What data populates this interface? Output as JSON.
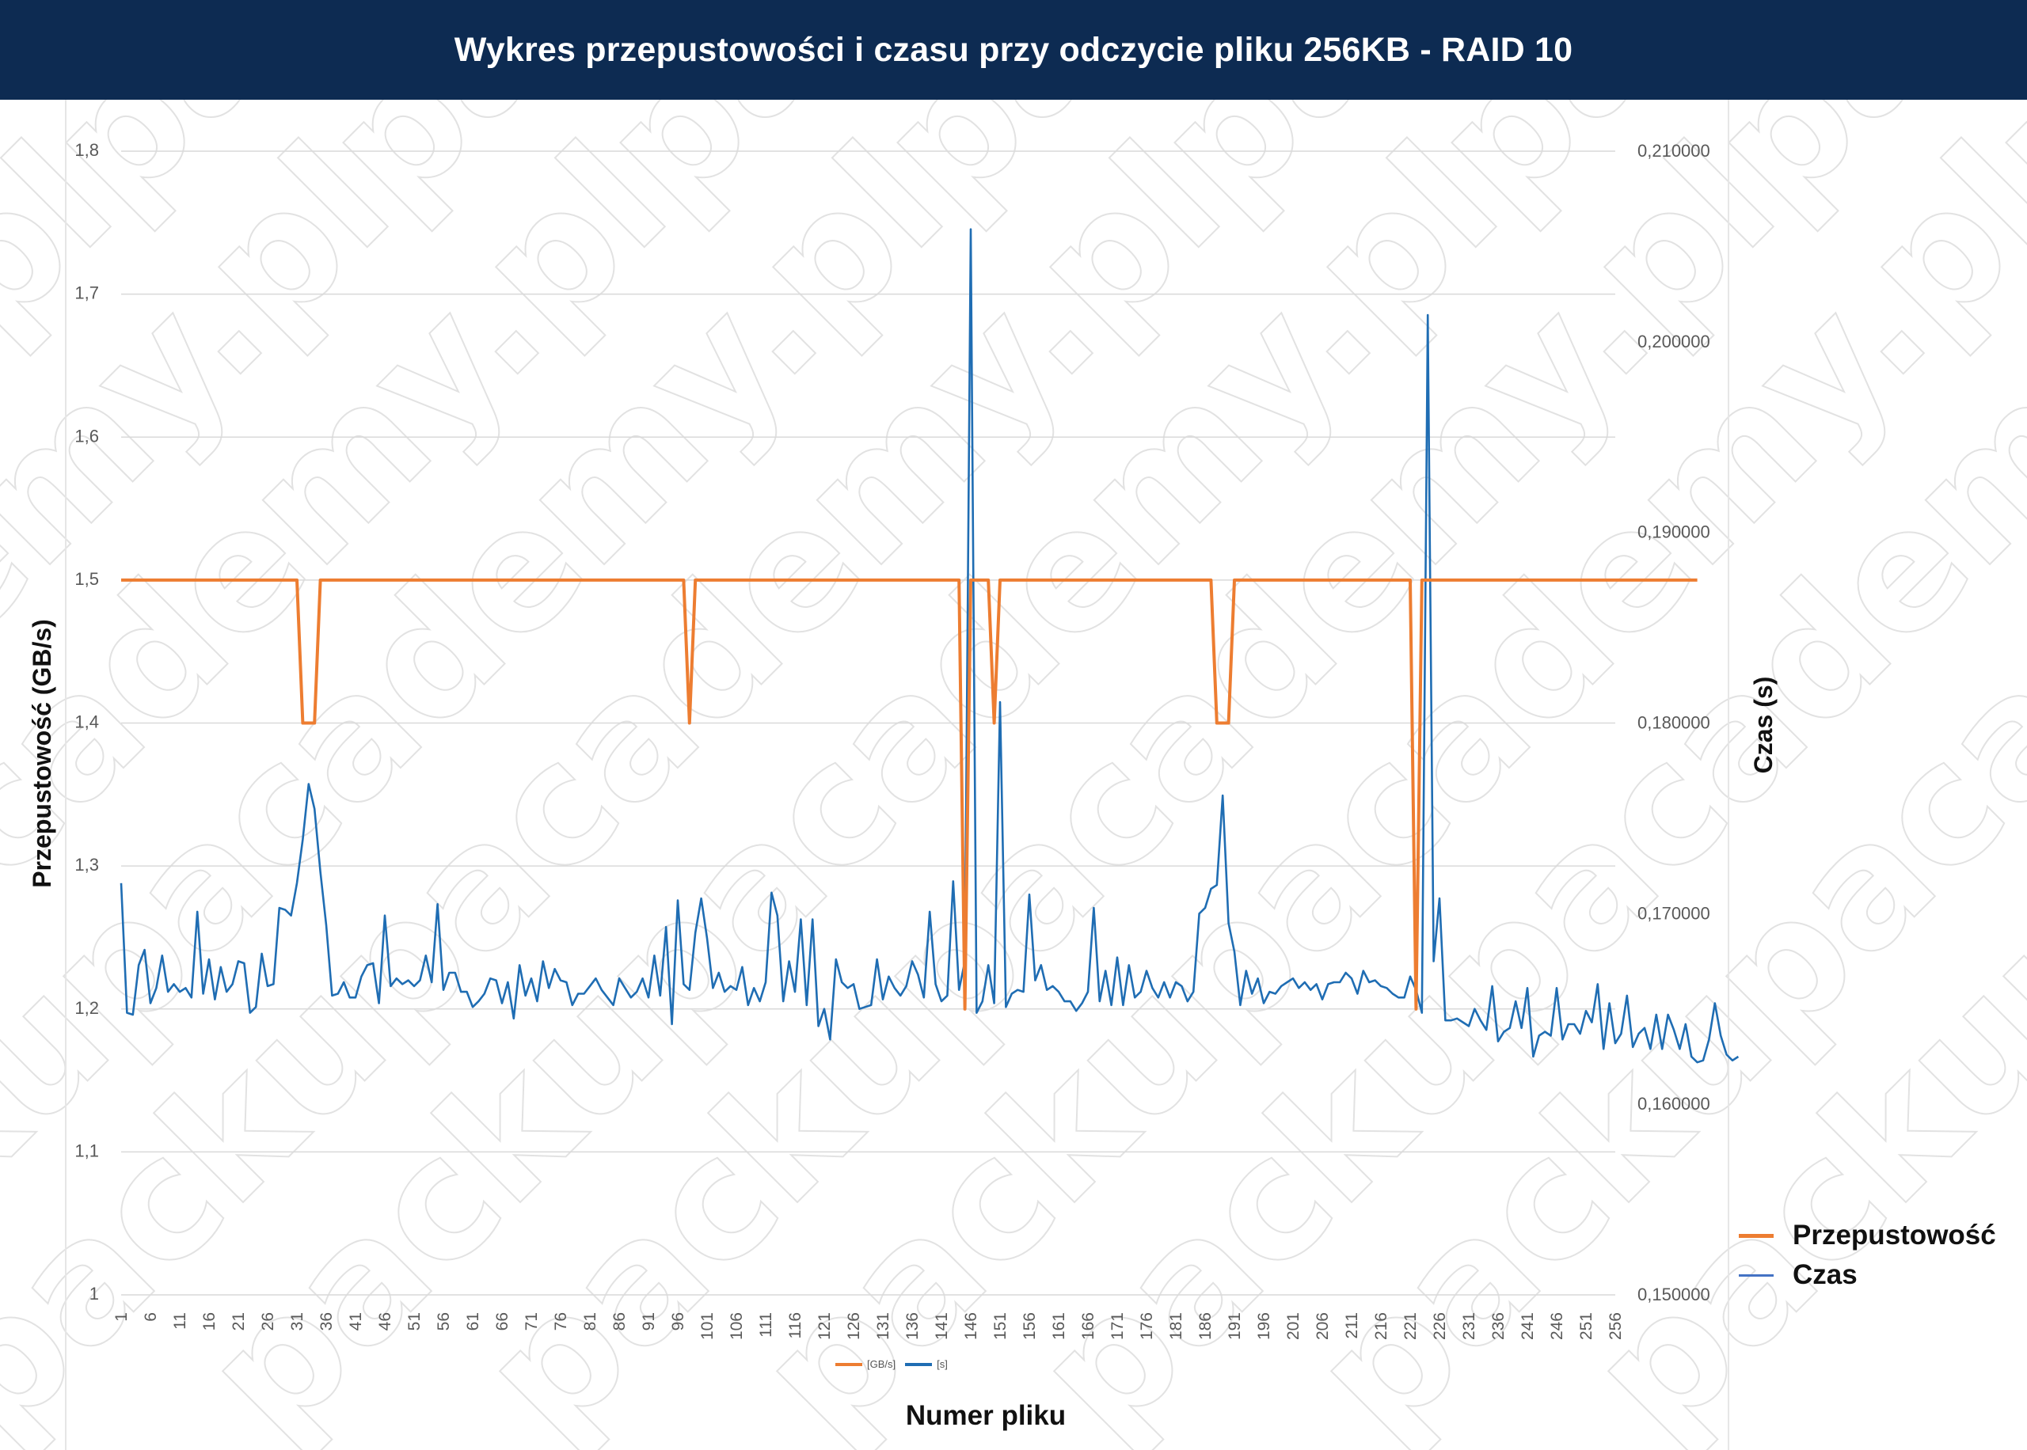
{
  "header": {
    "title": "Wykres przepustowości i czasu przy odczycie pliku 256KB - RAID 10"
  },
  "colors": {
    "header_bg": "#0d2b52",
    "throughput": "#ed7d31",
    "time": "#1f6db3",
    "grid": "#d9d9d9"
  },
  "watermark": "packupacademy.pl",
  "legend_right": [
    {
      "label": "Przepustowość",
      "color": "#ed7d31"
    },
    {
      "label": "Czas",
      "color": "#4472c4"
    }
  ],
  "legend_bottom": [
    {
      "label": "[GB/s]",
      "color": "#ed7d31"
    },
    {
      "label": "[s]",
      "color": "#1f6db3"
    }
  ],
  "chart_data": {
    "type": "line",
    "xlabel": "Numer pliku",
    "ylabel": "Przepustowość (GB/s)",
    "y2label": "Czas (s)",
    "ylim": [
      1,
      1.8
    ],
    "y2lim": [
      0.15,
      0.21
    ],
    "y_ticks": [
      "1",
      "1,1",
      "1,2",
      "1,3",
      "1,4",
      "1,5",
      "1,6",
      "1,7",
      "1,8"
    ],
    "y2_ticks": [
      "0,150000",
      "0,160000",
      "0,170000",
      "0,180000",
      "0,190000",
      "0,200000",
      "0,210000"
    ],
    "x_ticks": [
      "1",
      "6",
      "11",
      "16",
      "21",
      "26",
      "31",
      "36",
      "41",
      "46",
      "51",
      "56",
      "61",
      "66",
      "71",
      "76",
      "81",
      "86",
      "91",
      "96",
      "101",
      "106",
      "111",
      "116",
      "121",
      "126",
      "131",
      "136",
      "141",
      "146",
      "151",
      "156",
      "161",
      "166",
      "171",
      "176",
      "181",
      "186",
      "191",
      "196",
      "201",
      "206",
      "211",
      "216",
      "221",
      "226",
      "231",
      "236",
      "241",
      "246",
      "251",
      "256"
    ],
    "grid": true,
    "series": [
      {
        "name": "[GB/s]",
        "axis": "left",
        "x_start": 1,
        "values": [
          1.5,
          1.5,
          1.5,
          1.5,
          1.5,
          1.5,
          1.5,
          1.5,
          1.5,
          1.5,
          1.5,
          1.5,
          1.5,
          1.5,
          1.5,
          1.5,
          1.5,
          1.5,
          1.5,
          1.5,
          1.5,
          1.5,
          1.5,
          1.5,
          1.5,
          1.5,
          1.5,
          1.5,
          1.5,
          1.5,
          1.5,
          1.4,
          1.4,
          1.4,
          1.5,
          1.5,
          1.5,
          1.5,
          1.5,
          1.5,
          1.5,
          1.5,
          1.5,
          1.5,
          1.5,
          1.5,
          1.5,
          1.5,
          1.5,
          1.5,
          1.5,
          1.5,
          1.5,
          1.5,
          1.5,
          1.5,
          1.5,
          1.5,
          1.5,
          1.5,
          1.5,
          1.5,
          1.5,
          1.5,
          1.5,
          1.5,
          1.5,
          1.5,
          1.5,
          1.5,
          1.5,
          1.5,
          1.5,
          1.5,
          1.5,
          1.5,
          1.5,
          1.5,
          1.5,
          1.5,
          1.5,
          1.5,
          1.5,
          1.5,
          1.5,
          1.5,
          1.5,
          1.5,
          1.5,
          1.5,
          1.5,
          1.5,
          1.5,
          1.5,
          1.5,
          1.5,
          1.5,
          1.4,
          1.5,
          1.5,
          1.5,
          1.5,
          1.5,
          1.5,
          1.5,
          1.5,
          1.5,
          1.5,
          1.5,
          1.5,
          1.5,
          1.5,
          1.5,
          1.5,
          1.5,
          1.5,
          1.5,
          1.5,
          1.5,
          1.5,
          1.5,
          1.5,
          1.5,
          1.5,
          1.5,
          1.5,
          1.5,
          1.5,
          1.5,
          1.5,
          1.5,
          1.5,
          1.5,
          1.5,
          1.5,
          1.5,
          1.5,
          1.5,
          1.5,
          1.5,
          1.5,
          1.5,
          1.5,
          1.5,
          1.2,
          1.5,
          1.5,
          1.5,
          1.5,
          1.4,
          1.5,
          1.5,
          1.5,
          1.5,
          1.5,
          1.5,
          1.5,
          1.5,
          1.5,
          1.5,
          1.5,
          1.5,
          1.5,
          1.5,
          1.5,
          1.5,
          1.5,
          1.5,
          1.5,
          1.5,
          1.5,
          1.5,
          1.5,
          1.5,
          1.5,
          1.5,
          1.5,
          1.5,
          1.5,
          1.5,
          1.5,
          1.5,
          1.5,
          1.5,
          1.5,
          1.5,
          1.5,
          1.4,
          1.4,
          1.4,
          1.5,
          1.5,
          1.5,
          1.5,
          1.5,
          1.5,
          1.5,
          1.5,
          1.5,
          1.5,
          1.5,
          1.5,
          1.5,
          1.5,
          1.5,
          1.5,
          1.5,
          1.5,
          1.5,
          1.5,
          1.5,
          1.5,
          1.5,
          1.5,
          1.5,
          1.5,
          1.5,
          1.5,
          1.5,
          1.5,
          1.5,
          1.2,
          1.5,
          1.5,
          1.5,
          1.5,
          1.5,
          1.5,
          1.5,
          1.5,
          1.5,
          1.5,
          1.5,
          1.5,
          1.5,
          1.5,
          1.5,
          1.5,
          1.5,
          1.5,
          1.5,
          1.5,
          1.5,
          1.5,
          1.5,
          1.5,
          1.5,
          1.5,
          1.5,
          1.5,
          1.5,
          1.5,
          1.5,
          1.5,
          1.5,
          1.5,
          1.5,
          1.5,
          1.5,
          1.5,
          1.5,
          1.5,
          1.5,
          1.5,
          1.5,
          1.5,
          1.5,
          1.5,
          1.5,
          1.5
        ]
      },
      {
        "name": "[s]",
        "axis": "right",
        "x_start": 1,
        "values": [
          0.1716,
          0.1648,
          0.1647,
          0.1673,
          0.1681,
          0.1653,
          0.1661,
          0.1678,
          0.1659,
          0.1663,
          0.1659,
          0.1661,
          0.1656,
          0.1701,
          0.1658,
          0.1676,
          0.1655,
          0.1672,
          0.1659,
          0.1663,
          0.1675,
          0.1674,
          0.1648,
          0.1651,
          0.1679,
          0.1662,
          0.1663,
          0.1703,
          0.1702,
          0.1699,
          0.1716,
          0.1739,
          0.1768,
          0.1755,
          0.1722,
          0.1694,
          0.1657,
          0.1658,
          0.1664,
          0.1656,
          0.1656,
          0.1667,
          0.1673,
          0.1674,
          0.1653,
          0.1699,
          0.1662,
          0.1666,
          0.1663,
          0.1665,
          0.1662,
          0.1665,
          0.1678,
          0.1664,
          0.1705,
          0.166,
          0.1669,
          0.1669,
          0.1659,
          0.1659,
          0.1651,
          0.1654,
          0.1658,
          0.1666,
          0.1665,
          0.1653,
          0.1664,
          0.1645,
          0.1673,
          0.1657,
          0.1666,
          0.1654,
          0.1675,
          0.1661,
          0.1671,
          0.1665,
          0.1664,
          0.1652,
          0.1658,
          0.1658,
          0.1662,
          0.1666,
          0.166,
          0.1656,
          0.1652,
          0.1666,
          0.1661,
          0.1656,
          0.1659,
          0.1666,
          0.1656,
          0.1678,
          0.1657,
          0.1693,
          0.1642,
          0.1707,
          0.1663,
          0.166,
          0.169,
          0.1708,
          0.1687,
          0.1661,
          0.1669,
          0.1659,
          0.1662,
          0.166,
          0.1672,
          0.1652,
          0.1661,
          0.1654,
          0.1664,
          0.1711,
          0.1699,
          0.1654,
          0.1675,
          0.1659,
          0.1697,
          0.1652,
          0.1697,
          0.1641,
          0.165,
          0.1634,
          0.1676,
          0.1664,
          0.1661,
          0.1663,
          0.165,
          0.1651,
          0.1652,
          0.1676,
          0.1655,
          0.1667,
          0.1661,
          0.1657,
          0.1662,
          0.1675,
          0.1668,
          0.1656,
          0.1701,
          0.1663,
          0.1654,
          0.1657,
          0.1717,
          0.166,
          0.1675,
          0.2059,
          0.1648,
          0.1654,
          0.1673,
          0.1653,
          0.1811,
          0.1651,
          0.1658,
          0.166,
          0.1659,
          0.171,
          0.1665,
          0.1673,
          0.166,
          0.1662,
          0.1659,
          0.1654,
          0.1654,
          0.1649,
          0.1653,
          0.1659,
          0.1703,
          0.1654,
          0.167,
          0.1652,
          0.1677,
          0.1652,
          0.1673,
          0.1656,
          0.1659,
          0.167,
          0.1661,
          0.1656,
          0.1664,
          0.1656,
          0.1664,
          0.1662,
          0.1654,
          0.1659,
          0.17,
          0.1703,
          0.1713,
          0.1715,
          0.1762,
          0.1695,
          0.168,
          0.1652,
          0.167,
          0.1658,
          0.1666,
          0.1653,
          0.1659,
          0.1658,
          0.1662,
          0.1664,
          0.1666,
          0.1661,
          0.1664,
          0.166,
          0.1663,
          0.1655,
          0.1663,
          0.1664,
          0.1664,
          0.1669,
          0.1666,
          0.1658,
          0.167,
          0.1664,
          0.1665,
          0.1662,
          0.1661,
          0.1658,
          0.1656,
          0.1656,
          0.1667,
          0.166,
          0.1648,
          0.2014,
          0.1675,
          0.1708,
          0.1644,
          0.1644,
          0.1645,
          0.1643,
          0.1641,
          0.165,
          0.1644,
          0.1639,
          0.1662,
          0.1633,
          0.1638,
          0.164,
          0.1654,
          0.164,
          0.1661,
          0.1625,
          0.1636,
          0.1638,
          0.1636,
          0.1661,
          0.1634,
          0.1642,
          0.1642,
          0.1637,
          0.1649,
          0.1643,
          0.1663,
          0.1629,
          0.1653,
          0.1632,
          0.1637,
          0.1657,
          0.163,
          0.1637,
          0.164,
          0.1629,
          0.1647,
          0.1629,
          0.1647,
          0.1639,
          0.1629,
          0.1642,
          0.1625,
          0.1622,
          0.1623,
          0.1634,
          0.1653,
          0.1636,
          0.1626,
          0.1623,
          0.1625
        ]
      }
    ]
  }
}
